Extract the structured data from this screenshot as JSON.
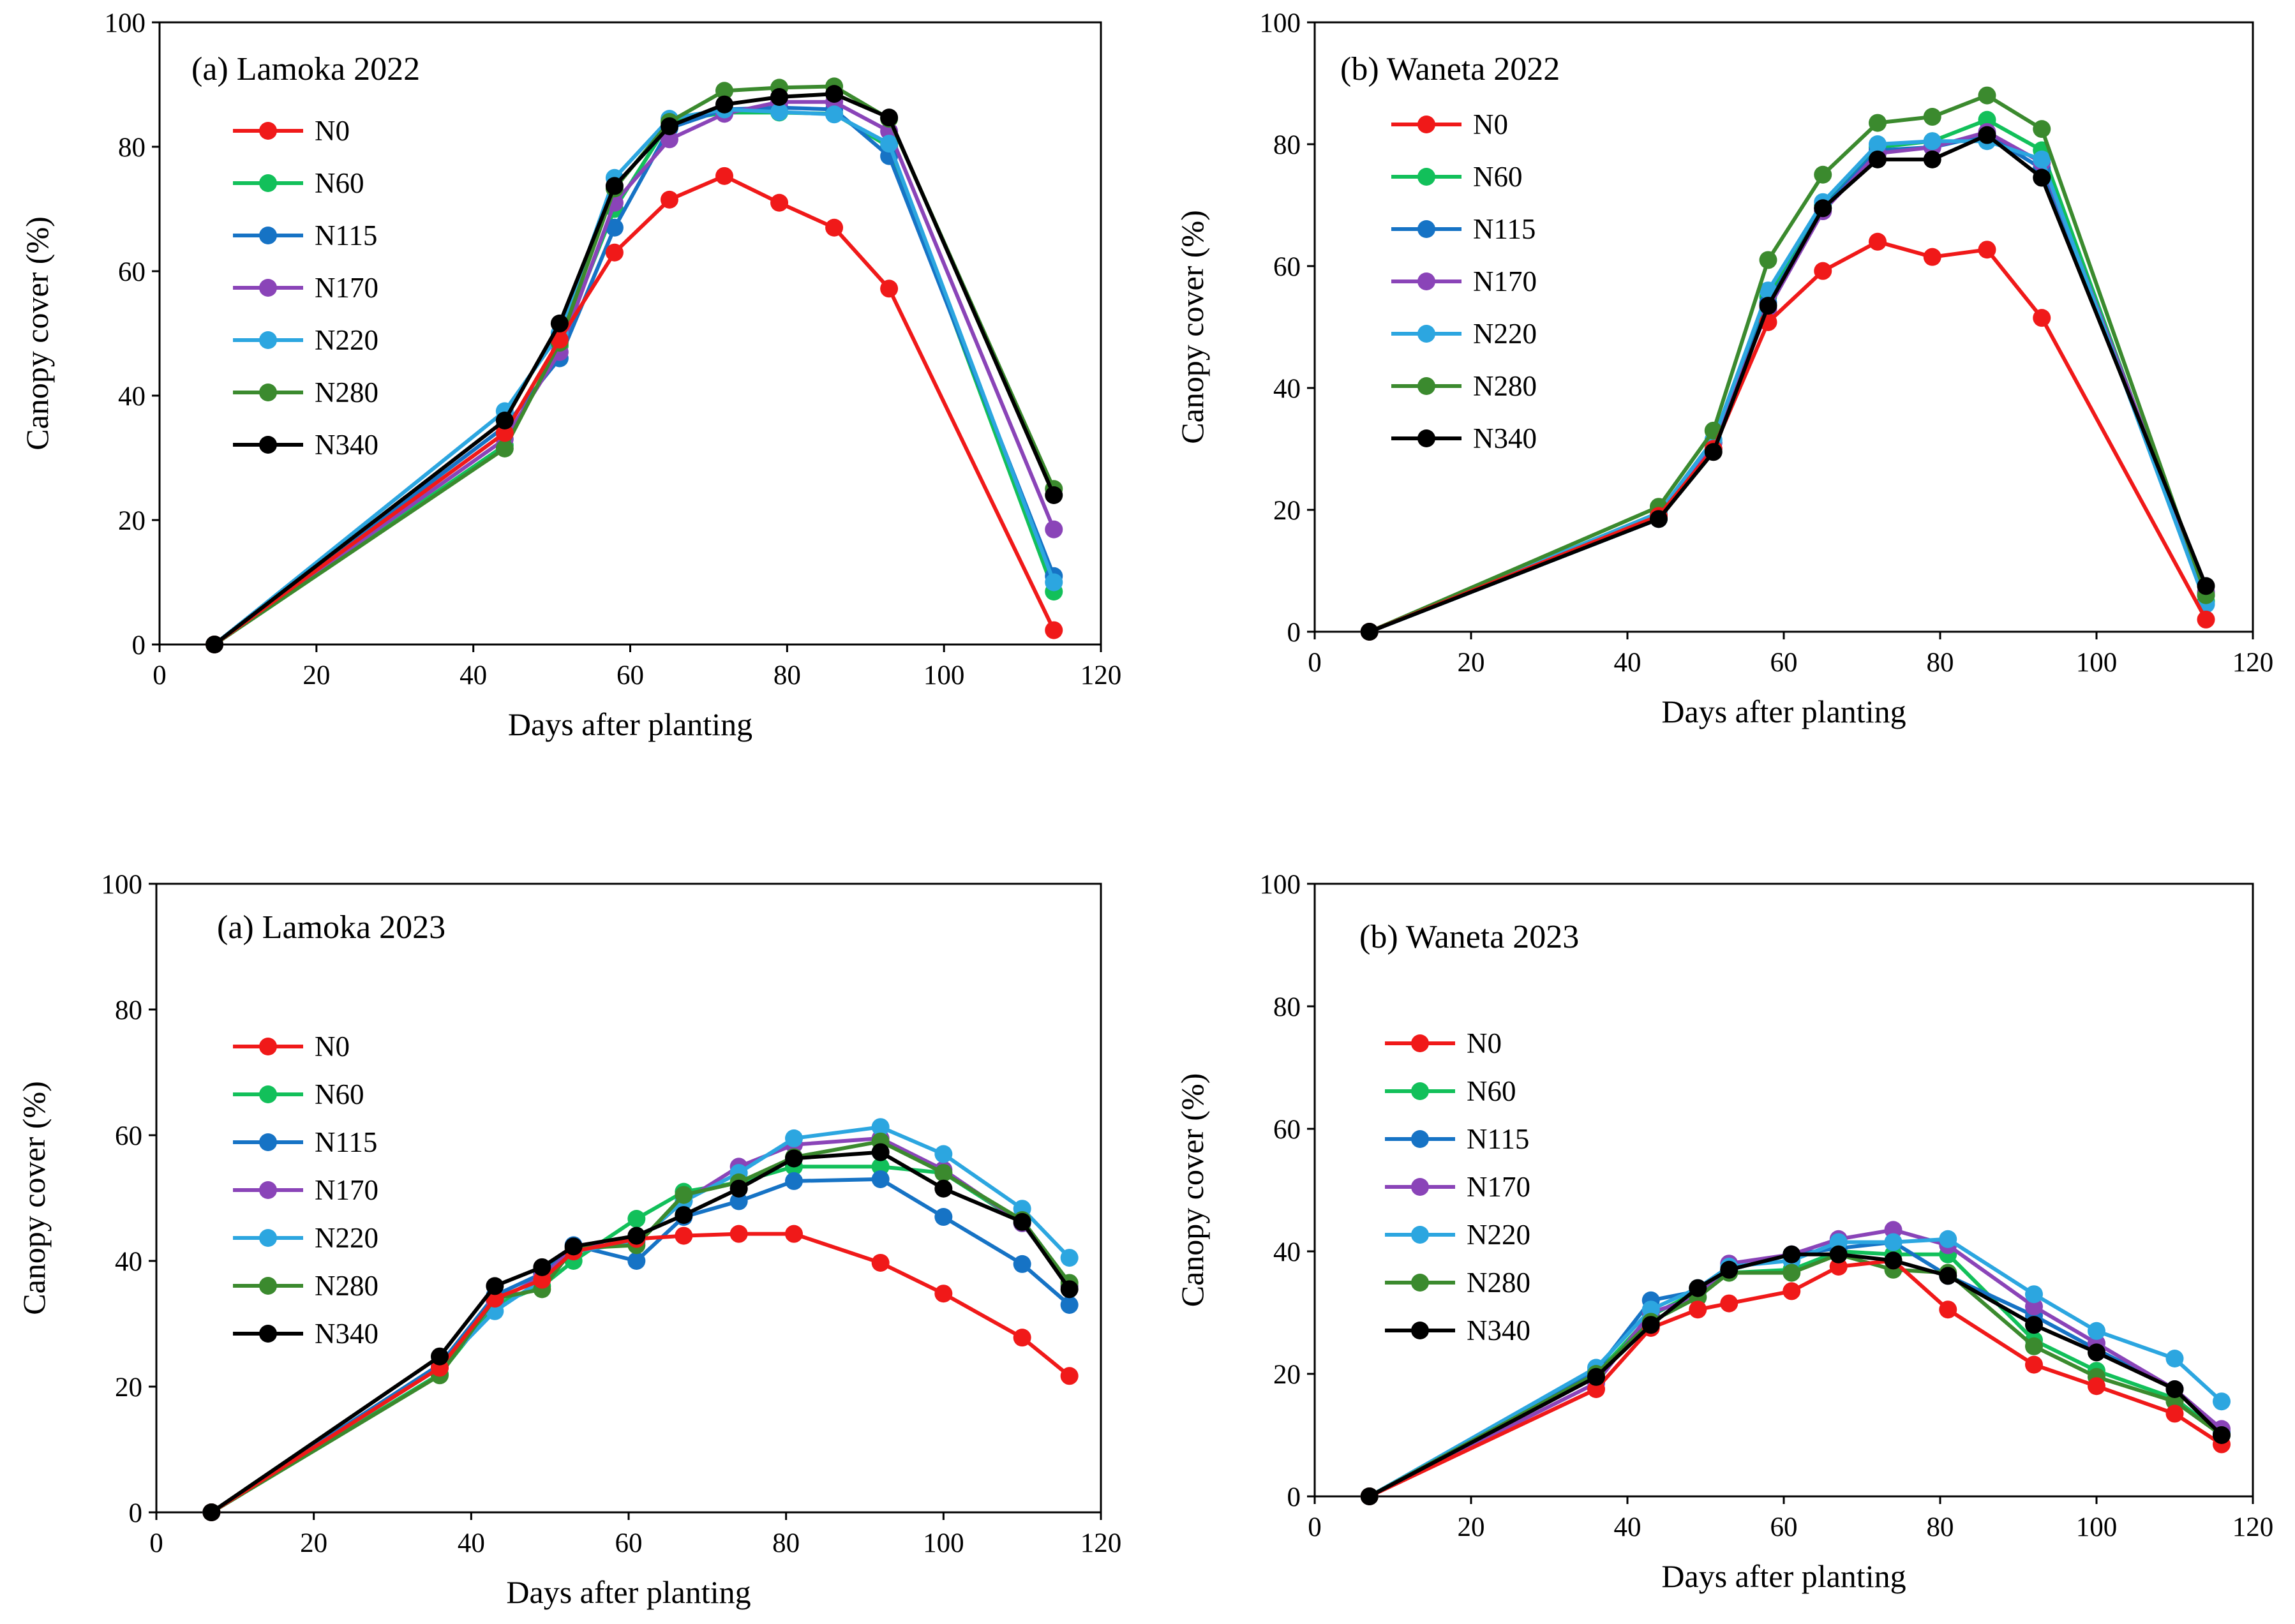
{
  "colors": {
    "N0": "#f01919",
    "N60": "#12c05a",
    "N115": "#1673c5",
    "N170": "#8a44b8",
    "N220": "#2ca6e0",
    "N280": "#3b8a2e",
    "N340": "#000000"
  },
  "chart_data": [
    {
      "type": "line",
      "title": "(a) Lamoka 2022",
      "xlabel": "Days after planting",
      "ylabel": "Canopy cover (%)",
      "xlim": [
        0,
        120
      ],
      "ylim": [
        0,
        100
      ],
      "xticks": [
        0,
        20,
        40,
        60,
        80,
        100,
        120
      ],
      "yticks": [
        0,
        20,
        40,
        60,
        80,
        100
      ],
      "legend_position": "upper-left",
      "x": [
        7,
        44,
        51,
        58,
        65,
        72,
        79,
        86,
        93,
        114
      ],
      "series": [
        {
          "name": "N0",
          "values": [
            0,
            34,
            49,
            63,
            71.5,
            75.3,
            71,
            67,
            57.2,
            2.3
          ]
        },
        {
          "name": "N60",
          "values": [
            0,
            32,
            48,
            70,
            84,
            85.5,
            85.5,
            85.3,
            80,
            8.5
          ]
        },
        {
          "name": "N115",
          "values": [
            0,
            35,
            46,
            67,
            83,
            86,
            86.3,
            86,
            78.5,
            11
          ]
        },
        {
          "name": "N170",
          "values": [
            0,
            33,
            47,
            71,
            81.2,
            85.3,
            87.2,
            87.2,
            82.5,
            18.5
          ]
        },
        {
          "name": "N220",
          "values": [
            0,
            37.5,
            50,
            75,
            84.5,
            86,
            85.6,
            85.2,
            80.5,
            10
          ]
        },
        {
          "name": "N280",
          "values": [
            0,
            31.5,
            48.5,
            73.3,
            84,
            89,
            89.5,
            89.7,
            84.5,
            25
          ]
        },
        {
          "name": "N340",
          "values": [
            0,
            36,
            51.6,
            73.7,
            83.3,
            86.8,
            88,
            88.5,
            84.7,
            24
          ]
        }
      ]
    },
    {
      "type": "line",
      "title": "(b) Waneta 2022",
      "xlabel": "Days after planting",
      "ylabel": "Canopy cover (%)",
      "xlim": [
        0,
        120
      ],
      "ylim": [
        0,
        100
      ],
      "xticks": [
        0,
        20,
        40,
        60,
        80,
        100,
        120
      ],
      "yticks": [
        0,
        20,
        40,
        60,
        80,
        100
      ],
      "legend_position": "upper-left",
      "x": [
        7,
        44,
        51,
        58,
        65,
        72,
        79,
        86,
        93,
        114
      ],
      "series": [
        {
          "name": "N0",
          "values": [
            0,
            19,
            30,
            50.8,
            59.2,
            64,
            61.5,
            62.7,
            51.5,
            2
          ]
        },
        {
          "name": "N60",
          "values": [
            0,
            19.5,
            31,
            55,
            70,
            79.5,
            80.5,
            84,
            79,
            5
          ]
        },
        {
          "name": "N115",
          "values": [
            0,
            18.5,
            30,
            54,
            69.5,
            79,
            79.5,
            81.5,
            76,
            6
          ]
        },
        {
          "name": "N170",
          "values": [
            0,
            19,
            31,
            53,
            69,
            78.5,
            79.5,
            82,
            77,
            6.5
          ]
        },
        {
          "name": "N220",
          "values": [
            0,
            19.5,
            31.5,
            56,
            70.5,
            80,
            80.5,
            80.5,
            77.5,
            4.5
          ]
        },
        {
          "name": "N280",
          "values": [
            0,
            20.5,
            33,
            61,
            75,
            83.5,
            84.5,
            88,
            82.5,
            6
          ]
        },
        {
          "name": "N340",
          "values": [
            0,
            18.5,
            29.5,
            53.5,
            69.5,
            77.5,
            77.5,
            81.5,
            74.5,
            7.5
          ]
        }
      ]
    },
    {
      "type": "line",
      "title": "(a) Lamoka 2023",
      "xlabel": "Days after planting",
      "ylabel": "Canopy cover (%)",
      "xlim": [
        0,
        120
      ],
      "ylim": [
        0,
        100
      ],
      "xticks": [
        0,
        20,
        40,
        60,
        80,
        100,
        120
      ],
      "yticks": [
        0,
        20,
        40,
        60,
        80,
        100
      ],
      "legend_position": "left",
      "x": [
        7,
        36,
        43,
        49,
        53,
        61,
        67,
        74,
        81,
        92,
        100,
        110,
        116
      ],
      "series": [
        {
          "name": "N0",
          "values": [
            0,
            23,
            34,
            37,
            41.5,
            43.5,
            44,
            44.3,
            44.3,
            39.7,
            34.8,
            27.8,
            21.7
          ]
        },
        {
          "name": "N60",
          "values": [
            0,
            22,
            33,
            36,
            40,
            46.7,
            51,
            52.5,
            55,
            55,
            54,
            46,
            36
          ]
        },
        {
          "name": "N115",
          "values": [
            0,
            23.5,
            34.5,
            38,
            42.5,
            40,
            47,
            49.5,
            52.7,
            53,
            47,
            39.5,
            33
          ]
        },
        {
          "name": "N170",
          "values": [
            0,
            23,
            33.5,
            37.5,
            42,
            43,
            49.5,
            55,
            58.5,
            59.5,
            54.5,
            46,
            36
          ]
        },
        {
          "name": "N220",
          "values": [
            0,
            23,
            32,
            37,
            41.5,
            43,
            49.5,
            54,
            59.5,
            61.3,
            57,
            48.3,
            40.5
          ]
        },
        {
          "name": "N280",
          "values": [
            0,
            21.8,
            34,
            35.5,
            42,
            42.5,
            50.5,
            52.5,
            56.5,
            59,
            54,
            46.5,
            36.5
          ]
        },
        {
          "name": "N340",
          "values": [
            0,
            24.8,
            36,
            39,
            42.3,
            44,
            47.3,
            51.5,
            56.3,
            57.3,
            51.5,
            46.2,
            35.5
          ]
        }
      ]
    },
    {
      "type": "line",
      "title": "(b) Waneta 2023",
      "xlabel": "Days after planting",
      "ylabel": "Canopy cover (%)",
      "xlim": [
        0,
        120
      ],
      "ylim": [
        0,
        100
      ],
      "xticks": [
        0,
        20,
        40,
        60,
        80,
        100,
        120
      ],
      "yticks": [
        0,
        20,
        40,
        60,
        80,
        100
      ],
      "legend_position": "left",
      "x": [
        7,
        36,
        43,
        49,
        53,
        61,
        67,
        74,
        81,
        92,
        100,
        110,
        116
      ],
      "series": [
        {
          "name": "N0",
          "values": [
            0,
            17.5,
            27.5,
            30.5,
            31.5,
            33.5,
            37.5,
            38.5,
            30.5,
            21.5,
            18,
            13.5,
            8.5
          ]
        },
        {
          "name": "N60",
          "values": [
            0,
            20,
            29.5,
            33.5,
            36.5,
            37,
            40,
            39.5,
            39.5,
            25.5,
            20.5,
            16,
            10
          ]
        },
        {
          "name": "N115",
          "values": [
            0,
            20.5,
            32,
            33.5,
            37,
            39.5,
            40.5,
            41.5,
            36,
            29.5,
            24,
            17.5,
            10.5
          ]
        },
        {
          "name": "N170",
          "values": [
            0,
            18.5,
            30,
            32.5,
            38,
            39.5,
            42,
            43.5,
            41,
            31,
            25,
            17.5,
            11
          ]
        },
        {
          "name": "N220",
          "values": [
            0,
            21,
            30.5,
            34,
            37.5,
            38.5,
            41.5,
            41.5,
            42,
            33,
            27,
            22.5,
            15.5
          ]
        },
        {
          "name": "N280",
          "values": [
            0,
            20,
            28.5,
            32.5,
            36.5,
            36.5,
            39.5,
            37,
            36.5,
            24.5,
            19.5,
            15.5,
            10
          ]
        },
        {
          "name": "N340",
          "values": [
            0,
            19.5,
            28,
            34,
            37,
            39.5,
            39.5,
            38.5,
            36,
            28,
            23.5,
            17.5,
            10
          ]
        }
      ]
    }
  ]
}
